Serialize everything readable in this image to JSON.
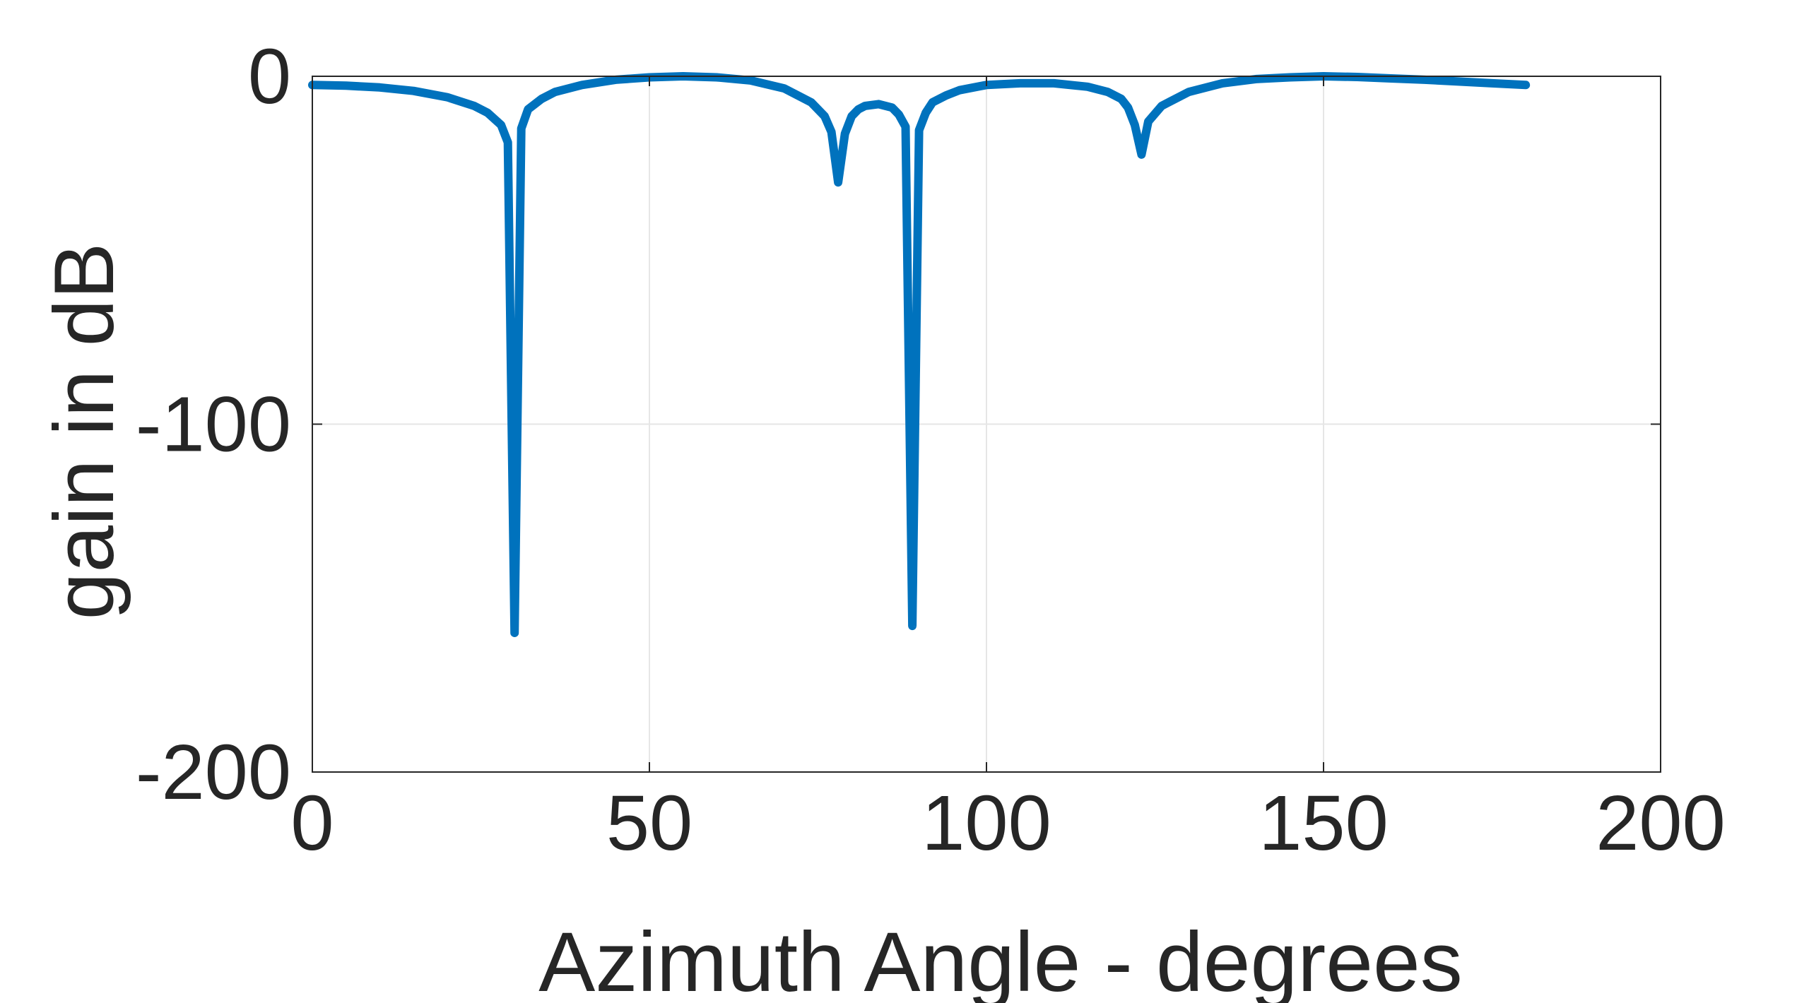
{
  "chart_data": {
    "type": "line",
    "title": "",
    "xlabel": "Azimuth Angle - degrees",
    "ylabel": "gain in dB",
    "xlim": [
      0,
      200
    ],
    "ylim": [
      -200,
      0
    ],
    "xticks": [
      0,
      50,
      100,
      150,
      200
    ],
    "yticks": [
      -200,
      -100,
      0
    ],
    "xtick_labels": [
      "0",
      "50",
      "100",
      "150",
      "200"
    ],
    "ytick_labels": [
      "-200",
      "-100",
      "0"
    ],
    "grid": true,
    "legend": "none",
    "line_color": "#0072BD",
    "series": [
      {
        "x": [
          0,
          5,
          10,
          15,
          20,
          24,
          26,
          28,
          29,
          30,
          31,
          32,
          34,
          36,
          40,
          45,
          50,
          55,
          60,
          65,
          70,
          74,
          76,
          77,
          78,
          79,
          80,
          81,
          82,
          84,
          86,
          87,
          88,
          89,
          90,
          91,
          92,
          94,
          96,
          100,
          105,
          110,
          115,
          118,
          120,
          121,
          122,
          123,
          124,
          126,
          130,
          135,
          140,
          145,
          150,
          155,
          160,
          165,
          170,
          175,
          180
        ],
        "y": [
          -2.5,
          -2.7,
          -3.2,
          -4.2,
          -6.0,
          -8.5,
          -10.5,
          -14,
          -19,
          -160,
          -15,
          -9.5,
          -6.5,
          -4.5,
          -2.5,
          -1.0,
          -0.3,
          0,
          -0.3,
          -1.2,
          -3.5,
          -7.5,
          -11.5,
          -16.0,
          -30.5,
          -16.5,
          -11.5,
          -9.5,
          -8.5,
          -8.0,
          -9.0,
          -11.0,
          -14.5,
          -158,
          -15.5,
          -10.5,
          -7.5,
          -5.5,
          -4.0,
          -2.5,
          -2.0,
          -2.0,
          -3.0,
          -4.5,
          -6.5,
          -9.0,
          -14.0,
          -22.5,
          -13.0,
          -8.5,
          -4.5,
          -2.0,
          -0.8,
          -0.3,
          0,
          -0.2,
          -0.6,
          -1.0,
          -1.5,
          -2.0,
          -2.5
        ]
      }
    ]
  }
}
